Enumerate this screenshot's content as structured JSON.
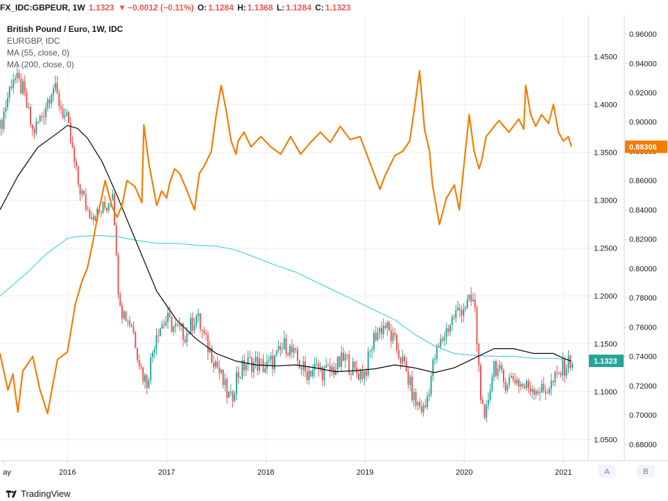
{
  "header": {
    "symbol": "FX_IDC:GBPEUR, 1W",
    "last": "1.1323",
    "change": "−0.0012 (−0.11%)",
    "open_label": "O:",
    "open": "1.1284",
    "high_label": "H:",
    "high": "1.1368",
    "low_label": "L:",
    "low": "1.1284",
    "close_label": "C:",
    "close": "1.1323"
  },
  "legend": {
    "title": "British Pound / Euro, 1W, IDC",
    "compare": "EURGBP, IDC",
    "ma55": "MA (55, close, 0)",
    "ma200": "MA (200, close, 0)"
  },
  "colors": {
    "up": "#26a69a",
    "down": "#ef5350",
    "compare": "#f57c00",
    "ma55": "#000000",
    "ma200": "#4dd0e1",
    "grid": "#eceef2",
    "axis": "#d1d4dc"
  },
  "footer": {
    "brand": "TradingView"
  },
  "buttons": {
    "a": "A",
    "b": "B"
  },
  "chart_data": {
    "type": "line",
    "x_ticks": [
      "ay",
      "2016",
      "2017",
      "2018",
      "2019",
      "2020",
      "2021"
    ],
    "x_tick_dates": [
      2015.35,
      2016.0,
      2017.0,
      2018.0,
      2019.0,
      2020.0,
      2021.0
    ],
    "xlim": [
      2015.32,
      2021.25
    ],
    "left_axis": {
      "ticks": [
        "1.4500",
        "1.4000",
        "1.3500",
        "1.3000",
        "1.2500",
        "1.2000",
        "1.1500",
        "1.1000",
        "1.0500"
      ],
      "ylim": [
        1.028,
        1.493
      ],
      "last_label": "1.1323"
    },
    "right_axis": {
      "ticks": [
        "0.96000",
        "0.94000",
        "0.92000",
        "0.90000",
        "0.88000",
        "0.86000",
        "0.84000",
        "0.82000",
        "0.80000",
        "0.78000",
        "0.76000",
        "0.74000",
        "0.72000",
        "0.70000",
        "0.68000"
      ],
      "ylim": [
        0.6688,
        0.9728
      ],
      "last_label": "0.88306"
    },
    "series": [
      {
        "name": "GBPEUR",
        "kind": "candles",
        "x": [
          2015.32,
          2015.45,
          2015.55,
          2015.65,
          2015.75,
          2015.85,
          2016.0,
          2016.1,
          2016.2,
          2016.3,
          2016.4,
          2016.46,
          2016.5,
          2016.55,
          2016.65,
          2016.75,
          2016.8,
          2016.9,
          2017.0,
          2017.1,
          2017.2,
          2017.3,
          2017.4,
          2017.5,
          2017.6,
          2017.65,
          2017.7,
          2017.8,
          2017.9,
          2018.0,
          2018.1,
          2018.2,
          2018.3,
          2018.4,
          2018.5,
          2018.6,
          2018.7,
          2018.8,
          2018.9,
          2019.0,
          2019.1,
          2019.2,
          2019.3,
          2019.4,
          2019.5,
          2019.6,
          2019.7,
          2019.8,
          2019.9,
          2020.0,
          2020.1,
          2020.15,
          2020.2,
          2020.25,
          2020.3,
          2020.4,
          2020.5,
          2020.6,
          2020.7,
          2020.8,
          2020.9,
          2021.0,
          2021.08
        ],
        "values": [
          1.375,
          1.43,
          1.415,
          1.37,
          1.39,
          1.42,
          1.38,
          1.32,
          1.29,
          1.285,
          1.295,
          1.315,
          1.22,
          1.185,
          1.17,
          1.12,
          1.11,
          1.165,
          1.175,
          1.165,
          1.16,
          1.18,
          1.15,
          1.13,
          1.1,
          1.09,
          1.115,
          1.13,
          1.13,
          1.125,
          1.135,
          1.15,
          1.135,
          1.12,
          1.125,
          1.12,
          1.125,
          1.135,
          1.12,
          1.12,
          1.16,
          1.17,
          1.15,
          1.125,
          1.09,
          1.08,
          1.135,
          1.16,
          1.18,
          1.19,
          1.195,
          1.12,
          1.06,
          1.1,
          1.13,
          1.11,
          1.115,
          1.105,
          1.105,
          1.1,
          1.11,
          1.125,
          1.133
        ]
      },
      {
        "name": "EURGBP, IDC",
        "kind": "line",
        "x": [
          2015.32,
          2015.4,
          2015.45,
          2015.5,
          2015.55,
          2015.65,
          2015.72,
          2015.8,
          2015.85,
          2015.9,
          2016.0,
          2016.08,
          2016.15,
          2016.2,
          2016.25,
          2016.3,
          2016.38,
          2016.45,
          2016.5,
          2016.55,
          2016.6,
          2016.68,
          2016.75,
          2016.77,
          2016.82,
          2016.9,
          2016.95,
          2017.0,
          2017.03,
          2017.08,
          2017.13,
          2017.2,
          2017.28,
          2017.33,
          2017.38,
          2017.45,
          2017.5,
          2017.55,
          2017.6,
          2017.65,
          2017.7,
          2017.72,
          2017.78,
          2017.85,
          2017.95,
          2018.05,
          2018.15,
          2018.25,
          2018.35,
          2018.45,
          2018.55,
          2018.65,
          2018.75,
          2018.85,
          2018.95,
          2019.05,
          2019.15,
          2019.2,
          2019.3,
          2019.38,
          2019.45,
          2019.5,
          2019.55,
          2019.6,
          2019.65,
          2019.68,
          2019.75,
          2019.82,
          2019.9,
          2019.95,
          2020.05,
          2020.1,
          2020.15,
          2020.18,
          2020.22,
          2020.28,
          2020.35,
          2020.45,
          2020.55,
          2020.6,
          2020.62,
          2020.67,
          2020.72,
          2020.78,
          2020.85,
          2020.9,
          2020.95,
          2021.0,
          2021.05,
          2021.08
        ],
        "values": [
          0.742,
          0.717,
          0.728,
          0.702,
          0.73,
          0.74,
          0.718,
          0.701,
          0.72,
          0.738,
          0.743,
          0.776,
          0.792,
          0.8,
          0.816,
          0.834,
          0.86,
          0.842,
          0.835,
          0.843,
          0.86,
          0.856,
          0.845,
          0.898,
          0.872,
          0.843,
          0.853,
          0.848,
          0.858,
          0.868,
          0.865,
          0.854,
          0.84,
          0.865,
          0.87,
          0.88,
          0.905,
          0.925,
          0.908,
          0.887,
          0.878,
          0.887,
          0.893,
          0.883,
          0.89,
          0.883,
          0.878,
          0.89,
          0.878,
          0.886,
          0.893,
          0.886,
          0.897,
          0.888,
          0.89,
          0.872,
          0.854,
          0.863,
          0.877,
          0.88,
          0.887,
          0.91,
          0.935,
          0.895,
          0.88,
          0.857,
          0.83,
          0.848,
          0.857,
          0.84,
          0.905,
          0.88,
          0.868,
          0.875,
          0.89,
          0.895,
          0.901,
          0.893,
          0.902,
          0.895,
          0.925,
          0.905,
          0.897,
          0.905,
          0.899,
          0.912,
          0.893,
          0.887,
          0.89,
          0.883
        ]
      },
      {
        "name": "MA (55, close, 0)",
        "kind": "line",
        "x": [
          2015.32,
          2015.5,
          2015.7,
          2015.9,
          2016.0,
          2016.1,
          2016.2,
          2016.35,
          2016.5,
          2016.7,
          2016.9,
          2017.1,
          2017.3,
          2017.5,
          2017.7,
          2017.9,
          2018.1,
          2018.3,
          2018.5,
          2018.7,
          2018.9,
          2019.1,
          2019.3,
          2019.5,
          2019.7,
          2019.9,
          2020.1,
          2020.3,
          2020.5,
          2020.7,
          2020.9,
          2021.0,
          2021.08
        ],
        "values": [
          1.29,
          1.325,
          1.355,
          1.37,
          1.378,
          1.375,
          1.365,
          1.34,
          1.305,
          1.255,
          1.205,
          1.175,
          1.155,
          1.14,
          1.132,
          1.128,
          1.127,
          1.128,
          1.125,
          1.121,
          1.122,
          1.124,
          1.128,
          1.125,
          1.12,
          1.125,
          1.135,
          1.145,
          1.145,
          1.14,
          1.14,
          1.135,
          1.132
        ]
      },
      {
        "name": "MA (200, close, 0)",
        "kind": "line",
        "x": [
          2015.32,
          2015.6,
          2015.8,
          2016.0,
          2016.1,
          2016.3,
          2016.5,
          2016.7,
          2016.9,
          2017.1,
          2017.3,
          2017.5,
          2017.7,
          2017.9,
          2018.1,
          2018.3,
          2018.5,
          2018.7,
          2018.9,
          2019.1,
          2019.3,
          2019.5,
          2019.7,
          2019.9,
          2020.1,
          2020.3,
          2020.5,
          2020.7,
          2020.9,
          2021.08
        ],
        "values": [
          1.2,
          1.225,
          1.245,
          1.26,
          1.262,
          1.263,
          1.262,
          1.258,
          1.255,
          1.255,
          1.253,
          1.252,
          1.248,
          1.24,
          1.232,
          1.225,
          1.215,
          1.205,
          1.195,
          1.185,
          1.175,
          1.16,
          1.148,
          1.14,
          1.138,
          1.137,
          1.137,
          1.135,
          1.135,
          1.133
        ]
      }
    ]
  }
}
